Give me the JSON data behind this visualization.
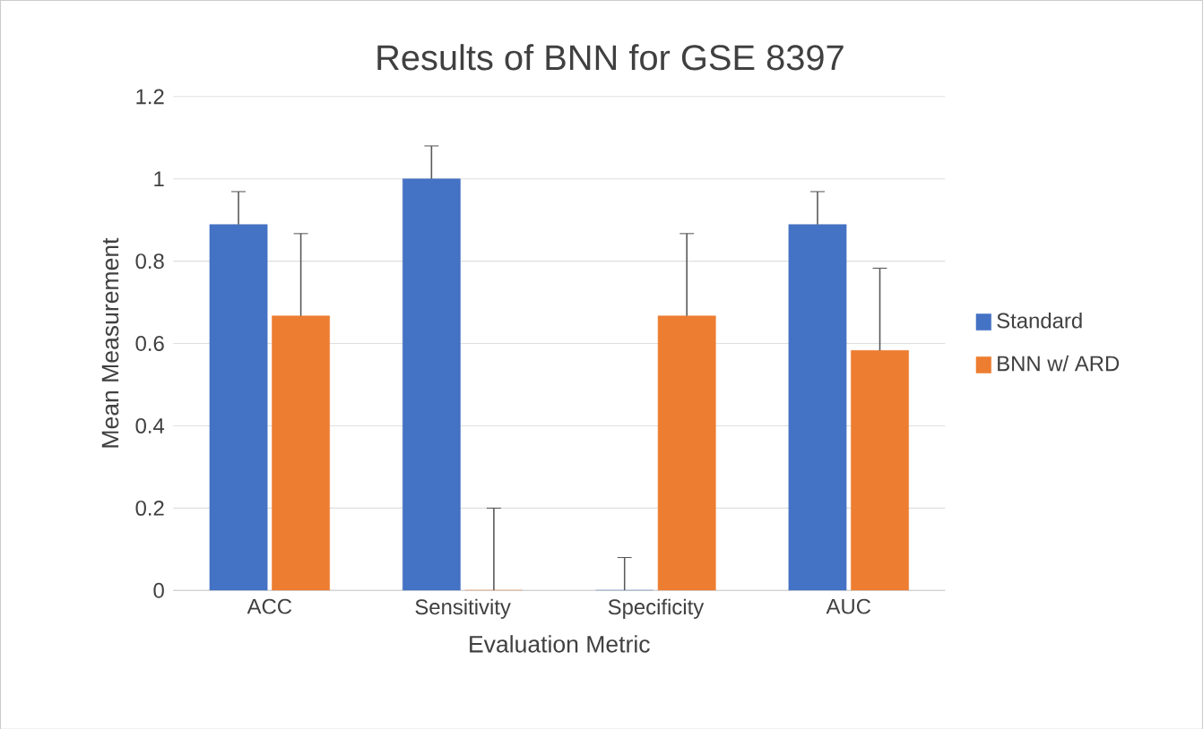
{
  "chart_data": {
    "type": "bar",
    "title": "Results of BNN for GSE 8397",
    "xlabel": "Evaluation Metric",
    "ylabel": "Mean Measurement",
    "categories": [
      "ACC",
      "Sensitivity",
      "Specificity",
      "AUC"
    ],
    "series": [
      {
        "name": "Standard",
        "color": "#4472c4",
        "values": [
          0.889,
          1,
          0,
          0.889
        ],
        "errors": [
          0.08,
          0.08,
          0.08,
          0.08
        ]
      },
      {
        "name": "BNN w/ ARD",
        "color": "#ed7d31",
        "values": [
          0.667,
          0,
          0.667,
          0.583
        ],
        "errors": [
          0.2,
          0.2,
          0.2,
          0.2
        ]
      }
    ],
    "ylim": [
      0,
      1.2
    ],
    "yticks": [
      0,
      0.2,
      0.4,
      0.6,
      0.8,
      1,
      1.2
    ],
    "grid": "y",
    "legend": "right"
  }
}
